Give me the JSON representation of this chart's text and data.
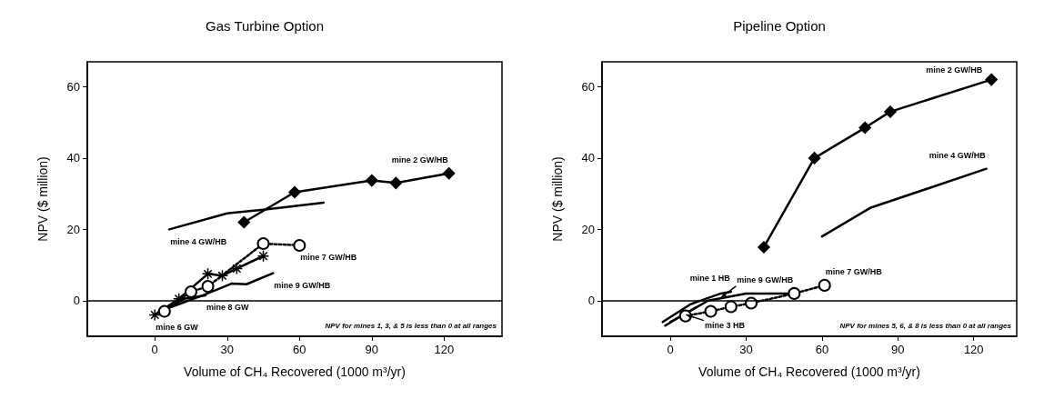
{
  "chart_data": [
    {
      "type": "line",
      "title": "Gas Turbine Option",
      "xlabel": "Volume of CH₄ Recovered (1000 m³/yr)",
      "ylabel": "NPV ($ million)",
      "xlim": [
        -28,
        144
      ],
      "xticks": [
        0,
        30,
        60,
        90,
        120
      ],
      "ylim": [
        -10,
        67
      ],
      "yticks": [
        0,
        20,
        40,
        60
      ],
      "grid": false,
      "legend": false,
      "ref_lines": [
        {
          "axis": "y",
          "value": 0
        }
      ],
      "annotations": [
        "NPV for mines 1, 3, & 5 is less than 0 at all ranges"
      ],
      "series": [
        {
          "name": "mine 2 GW/HB",
          "color": "#000000",
          "marker": "diamond",
          "x": [
            37,
            58,
            90,
            100,
            122
          ],
          "values": [
            22,
            30.4,
            33.7,
            33,
            35.7
          ]
        },
        {
          "name": "mine 4 GW/HB",
          "color": "#000000",
          "marker": "none",
          "x": [
            70,
            45,
            30,
            6
          ],
          "values": [
            27.5,
            25.5,
            24.5,
            20
          ]
        },
        {
          "name": "mine 7 GW/HB",
          "color": "#000000",
          "marker": "circle",
          "line_style": "dotted",
          "x": [
            4,
            15,
            22,
            45,
            60
          ],
          "values": [
            -3,
            2.5,
            4,
            16,
            15.5
          ]
        },
        {
          "name": "mine 6 GW",
          "color": "#000000",
          "marker": "cross",
          "x": [
            0,
            10,
            22,
            28,
            34,
            45
          ],
          "values": [
            -4,
            0.5,
            7.5,
            7,
            9,
            12.5
          ]
        },
        {
          "name": "mine 9 GW/HB",
          "color": "#000000",
          "marker": "none",
          "x": [
            2,
            20,
            32,
            38,
            49
          ],
          "values": [
            -3,
            1.5,
            4.8,
            4.6,
            7.7
          ]
        },
        {
          "name": "mine 8 GW",
          "color": "#000000",
          "marker": "none",
          "x": [
            3,
            12,
            21
          ],
          "values": [
            -3,
            0.5,
            1.5
          ]
        }
      ]
    },
    {
      "type": "line",
      "title": "Pipeline Option",
      "xlabel": "Volume of CH₄ Recovered (1000 m³/yr)",
      "ylabel": "NPV ($ million)",
      "xlim": [
        -27,
        137
      ],
      "xticks": [
        0,
        30,
        60,
        90,
        120
      ],
      "ylim": [
        -10,
        67
      ],
      "yticks": [
        0,
        20,
        40,
        60
      ],
      "grid": false,
      "legend": false,
      "ref_lines": [
        {
          "axis": "y",
          "value": 0
        }
      ],
      "annotations": [
        "NPV for mines 5, 6, & 8 is less than 0 at all ranges"
      ],
      "series": [
        {
          "name": "mine 2 GW/HB",
          "color": "#000000",
          "marker": "diamond",
          "x": [
            37,
            57,
            77,
            87,
            127
          ],
          "values": [
            15,
            40,
            48.5,
            53,
            62
          ]
        },
        {
          "name": "mine 4 GW/HB",
          "color": "#000000",
          "marker": "none",
          "x": [
            60,
            79,
            125
          ],
          "values": [
            18,
            26,
            37
          ]
        },
        {
          "name": "mine 7 GW/HB",
          "color": "#000000",
          "marker": "circle",
          "line_style": "dotted",
          "x": [
            6,
            16,
            24,
            32,
            49,
            61
          ],
          "values": [
            -4.3,
            -3,
            -1.7,
            -0.7,
            2,
            4.3
          ]
        },
        {
          "name": "mine 9 GW/HB",
          "color": "#000000",
          "marker": "none",
          "x": [
            0,
            15,
            30,
            49
          ],
          "values": [
            -6,
            0,
            2,
            2
          ]
        },
        {
          "name": "mine 1 HB",
          "color": "#000000",
          "marker": "none",
          "x": [
            -3,
            8,
            20,
            24
          ],
          "values": [
            -6,
            -1,
            2,
            2.5
          ]
        },
        {
          "name": "mine 3 HB",
          "color": "#000000",
          "marker": "none",
          "x": [
            -2,
            5,
            10
          ],
          "values": [
            -7,
            -4,
            -2
          ]
        }
      ]
    }
  ]
}
